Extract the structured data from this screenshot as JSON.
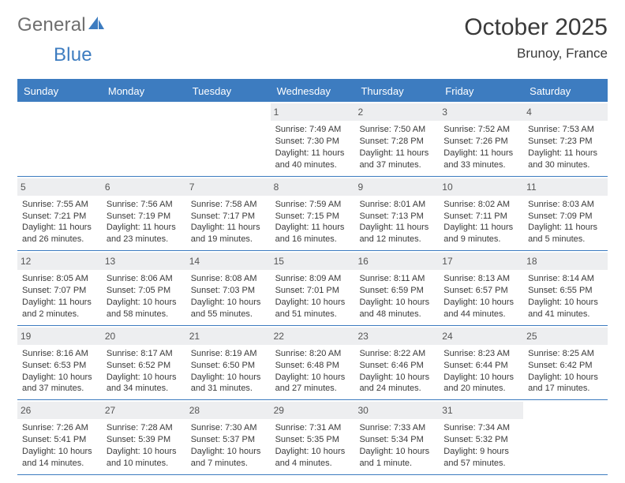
{
  "logo": {
    "text1": "General",
    "text2": "Blue"
  },
  "title": "October 2025",
  "subtitle": "Brunoy, France",
  "colors": {
    "accent": "#3d7cc0",
    "dayband": "#edeef0",
    "text": "#3a3a3a"
  },
  "day_headers": [
    "Sunday",
    "Monday",
    "Tuesday",
    "Wednesday",
    "Thursday",
    "Friday",
    "Saturday"
  ],
  "weeks": [
    [
      {
        "n": "",
        "l1": "",
        "l2": "",
        "l3": "",
        "l4": "",
        "empty": true
      },
      {
        "n": "",
        "l1": "",
        "l2": "",
        "l3": "",
        "l4": "",
        "empty": true
      },
      {
        "n": "",
        "l1": "",
        "l2": "",
        "l3": "",
        "l4": "",
        "empty": true
      },
      {
        "n": "1",
        "l1": "Sunrise: 7:49 AM",
        "l2": "Sunset: 7:30 PM",
        "l3": "Daylight: 11 hours",
        "l4": "and 40 minutes."
      },
      {
        "n": "2",
        "l1": "Sunrise: 7:50 AM",
        "l2": "Sunset: 7:28 PM",
        "l3": "Daylight: 11 hours",
        "l4": "and 37 minutes."
      },
      {
        "n": "3",
        "l1": "Sunrise: 7:52 AM",
        "l2": "Sunset: 7:26 PM",
        "l3": "Daylight: 11 hours",
        "l4": "and 33 minutes."
      },
      {
        "n": "4",
        "l1": "Sunrise: 7:53 AM",
        "l2": "Sunset: 7:23 PM",
        "l3": "Daylight: 11 hours",
        "l4": "and 30 minutes."
      }
    ],
    [
      {
        "n": "5",
        "l1": "Sunrise: 7:55 AM",
        "l2": "Sunset: 7:21 PM",
        "l3": "Daylight: 11 hours",
        "l4": "and 26 minutes."
      },
      {
        "n": "6",
        "l1": "Sunrise: 7:56 AM",
        "l2": "Sunset: 7:19 PM",
        "l3": "Daylight: 11 hours",
        "l4": "and 23 minutes."
      },
      {
        "n": "7",
        "l1": "Sunrise: 7:58 AM",
        "l2": "Sunset: 7:17 PM",
        "l3": "Daylight: 11 hours",
        "l4": "and 19 minutes."
      },
      {
        "n": "8",
        "l1": "Sunrise: 7:59 AM",
        "l2": "Sunset: 7:15 PM",
        "l3": "Daylight: 11 hours",
        "l4": "and 16 minutes."
      },
      {
        "n": "9",
        "l1": "Sunrise: 8:01 AM",
        "l2": "Sunset: 7:13 PM",
        "l3": "Daylight: 11 hours",
        "l4": "and 12 minutes."
      },
      {
        "n": "10",
        "l1": "Sunrise: 8:02 AM",
        "l2": "Sunset: 7:11 PM",
        "l3": "Daylight: 11 hours",
        "l4": "and 9 minutes."
      },
      {
        "n": "11",
        "l1": "Sunrise: 8:03 AM",
        "l2": "Sunset: 7:09 PM",
        "l3": "Daylight: 11 hours",
        "l4": "and 5 minutes."
      }
    ],
    [
      {
        "n": "12",
        "l1": "Sunrise: 8:05 AM",
        "l2": "Sunset: 7:07 PM",
        "l3": "Daylight: 11 hours",
        "l4": "and 2 minutes."
      },
      {
        "n": "13",
        "l1": "Sunrise: 8:06 AM",
        "l2": "Sunset: 7:05 PM",
        "l3": "Daylight: 10 hours",
        "l4": "and 58 minutes."
      },
      {
        "n": "14",
        "l1": "Sunrise: 8:08 AM",
        "l2": "Sunset: 7:03 PM",
        "l3": "Daylight: 10 hours",
        "l4": "and 55 minutes."
      },
      {
        "n": "15",
        "l1": "Sunrise: 8:09 AM",
        "l2": "Sunset: 7:01 PM",
        "l3": "Daylight: 10 hours",
        "l4": "and 51 minutes."
      },
      {
        "n": "16",
        "l1": "Sunrise: 8:11 AM",
        "l2": "Sunset: 6:59 PM",
        "l3": "Daylight: 10 hours",
        "l4": "and 48 minutes."
      },
      {
        "n": "17",
        "l1": "Sunrise: 8:13 AM",
        "l2": "Sunset: 6:57 PM",
        "l3": "Daylight: 10 hours",
        "l4": "and 44 minutes."
      },
      {
        "n": "18",
        "l1": "Sunrise: 8:14 AM",
        "l2": "Sunset: 6:55 PM",
        "l3": "Daylight: 10 hours",
        "l4": "and 41 minutes."
      }
    ],
    [
      {
        "n": "19",
        "l1": "Sunrise: 8:16 AM",
        "l2": "Sunset: 6:53 PM",
        "l3": "Daylight: 10 hours",
        "l4": "and 37 minutes."
      },
      {
        "n": "20",
        "l1": "Sunrise: 8:17 AM",
        "l2": "Sunset: 6:52 PM",
        "l3": "Daylight: 10 hours",
        "l4": "and 34 minutes."
      },
      {
        "n": "21",
        "l1": "Sunrise: 8:19 AM",
        "l2": "Sunset: 6:50 PM",
        "l3": "Daylight: 10 hours",
        "l4": "and 31 minutes."
      },
      {
        "n": "22",
        "l1": "Sunrise: 8:20 AM",
        "l2": "Sunset: 6:48 PM",
        "l3": "Daylight: 10 hours",
        "l4": "and 27 minutes."
      },
      {
        "n": "23",
        "l1": "Sunrise: 8:22 AM",
        "l2": "Sunset: 6:46 PM",
        "l3": "Daylight: 10 hours",
        "l4": "and 24 minutes."
      },
      {
        "n": "24",
        "l1": "Sunrise: 8:23 AM",
        "l2": "Sunset: 6:44 PM",
        "l3": "Daylight: 10 hours",
        "l4": "and 20 minutes."
      },
      {
        "n": "25",
        "l1": "Sunrise: 8:25 AM",
        "l2": "Sunset: 6:42 PM",
        "l3": "Daylight: 10 hours",
        "l4": "and 17 minutes."
      }
    ],
    [
      {
        "n": "26",
        "l1": "Sunrise: 7:26 AM",
        "l2": "Sunset: 5:41 PM",
        "l3": "Daylight: 10 hours",
        "l4": "and 14 minutes."
      },
      {
        "n": "27",
        "l1": "Sunrise: 7:28 AM",
        "l2": "Sunset: 5:39 PM",
        "l3": "Daylight: 10 hours",
        "l4": "and 10 minutes."
      },
      {
        "n": "28",
        "l1": "Sunrise: 7:30 AM",
        "l2": "Sunset: 5:37 PM",
        "l3": "Daylight: 10 hours",
        "l4": "and 7 minutes."
      },
      {
        "n": "29",
        "l1": "Sunrise: 7:31 AM",
        "l2": "Sunset: 5:35 PM",
        "l3": "Daylight: 10 hours",
        "l4": "and 4 minutes."
      },
      {
        "n": "30",
        "l1": "Sunrise: 7:33 AM",
        "l2": "Sunset: 5:34 PM",
        "l3": "Daylight: 10 hours",
        "l4": "and 1 minute."
      },
      {
        "n": "31",
        "l1": "Sunrise: 7:34 AM",
        "l2": "Sunset: 5:32 PM",
        "l3": "Daylight: 9 hours",
        "l4": "and 57 minutes."
      },
      {
        "n": "",
        "l1": "",
        "l2": "",
        "l3": "",
        "l4": "",
        "empty": true
      }
    ]
  ]
}
